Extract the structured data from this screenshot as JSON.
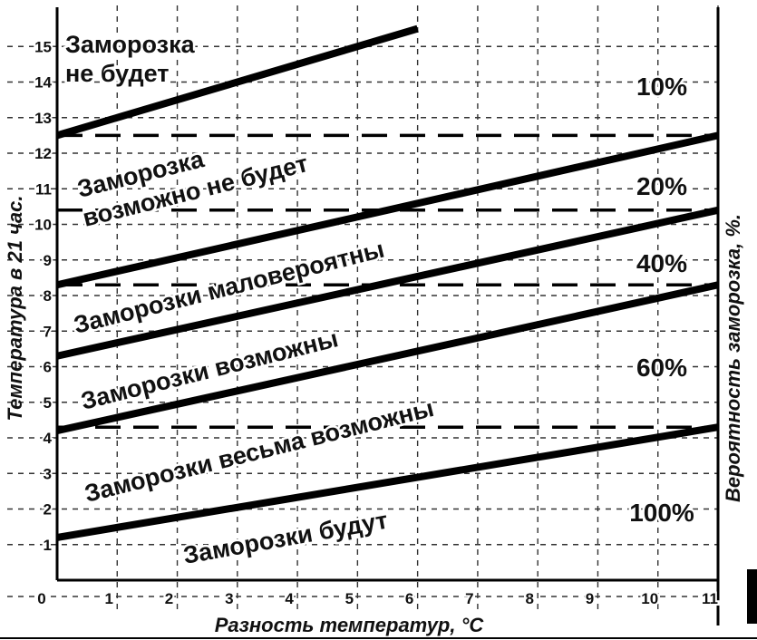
{
  "chart_data": {
    "type": "line",
    "xlabel": "Разность температур, °C",
    "ylabel": "Температура в 21 час.",
    "y2label": "Вероятность заморозка, %.",
    "xlim": [
      0,
      11
    ],
    "ylim": [
      0,
      16
    ],
    "x_ticks": [
      "0",
      "1",
      "2",
      "3",
      "4",
      "5",
      "6",
      "7",
      "8",
      "9",
      "10",
      "11"
    ],
    "y_ticks": [
      "1",
      "2",
      "3",
      "4",
      "5",
      "6",
      "7",
      "8",
      "9",
      "10",
      "11",
      "12",
      "13",
      "14",
      "15"
    ],
    "grid": true,
    "series": [
      {
        "x": [
          0,
          6
        ],
        "y": [
          12.5,
          15.5
        ]
      },
      {
        "x": [
          0,
          11
        ],
        "y": [
          8.3,
          12.5
        ]
      },
      {
        "x": [
          0,
          11
        ],
        "y": [
          6.3,
          10.4
        ]
      },
      {
        "x": [
          0,
          11
        ],
        "y": [
          4.2,
          8.3
        ]
      },
      {
        "x": [
          0,
          11
        ],
        "y": [
          1.2,
          4.3
        ]
      }
    ],
    "threshold_lines": [
      12.5,
      10.4,
      8.3,
      4.3
    ],
    "zones": [
      {
        "lines": [
          "Заморозка",
          "не будет"
        ]
      },
      {
        "lines": [
          "Заморозка",
          "возможно не будет"
        ]
      },
      {
        "lines": [
          "Заморозки маловероятны"
        ]
      },
      {
        "lines": [
          "Заморозки возможны"
        ]
      },
      {
        "lines": [
          "Заморозки весьма возможны"
        ]
      },
      {
        "lines": [
          "Заморозки будут"
        ]
      }
    ],
    "probabilities": [
      "10%",
      "20%",
      "40%",
      "60%",
      "100%"
    ]
  }
}
